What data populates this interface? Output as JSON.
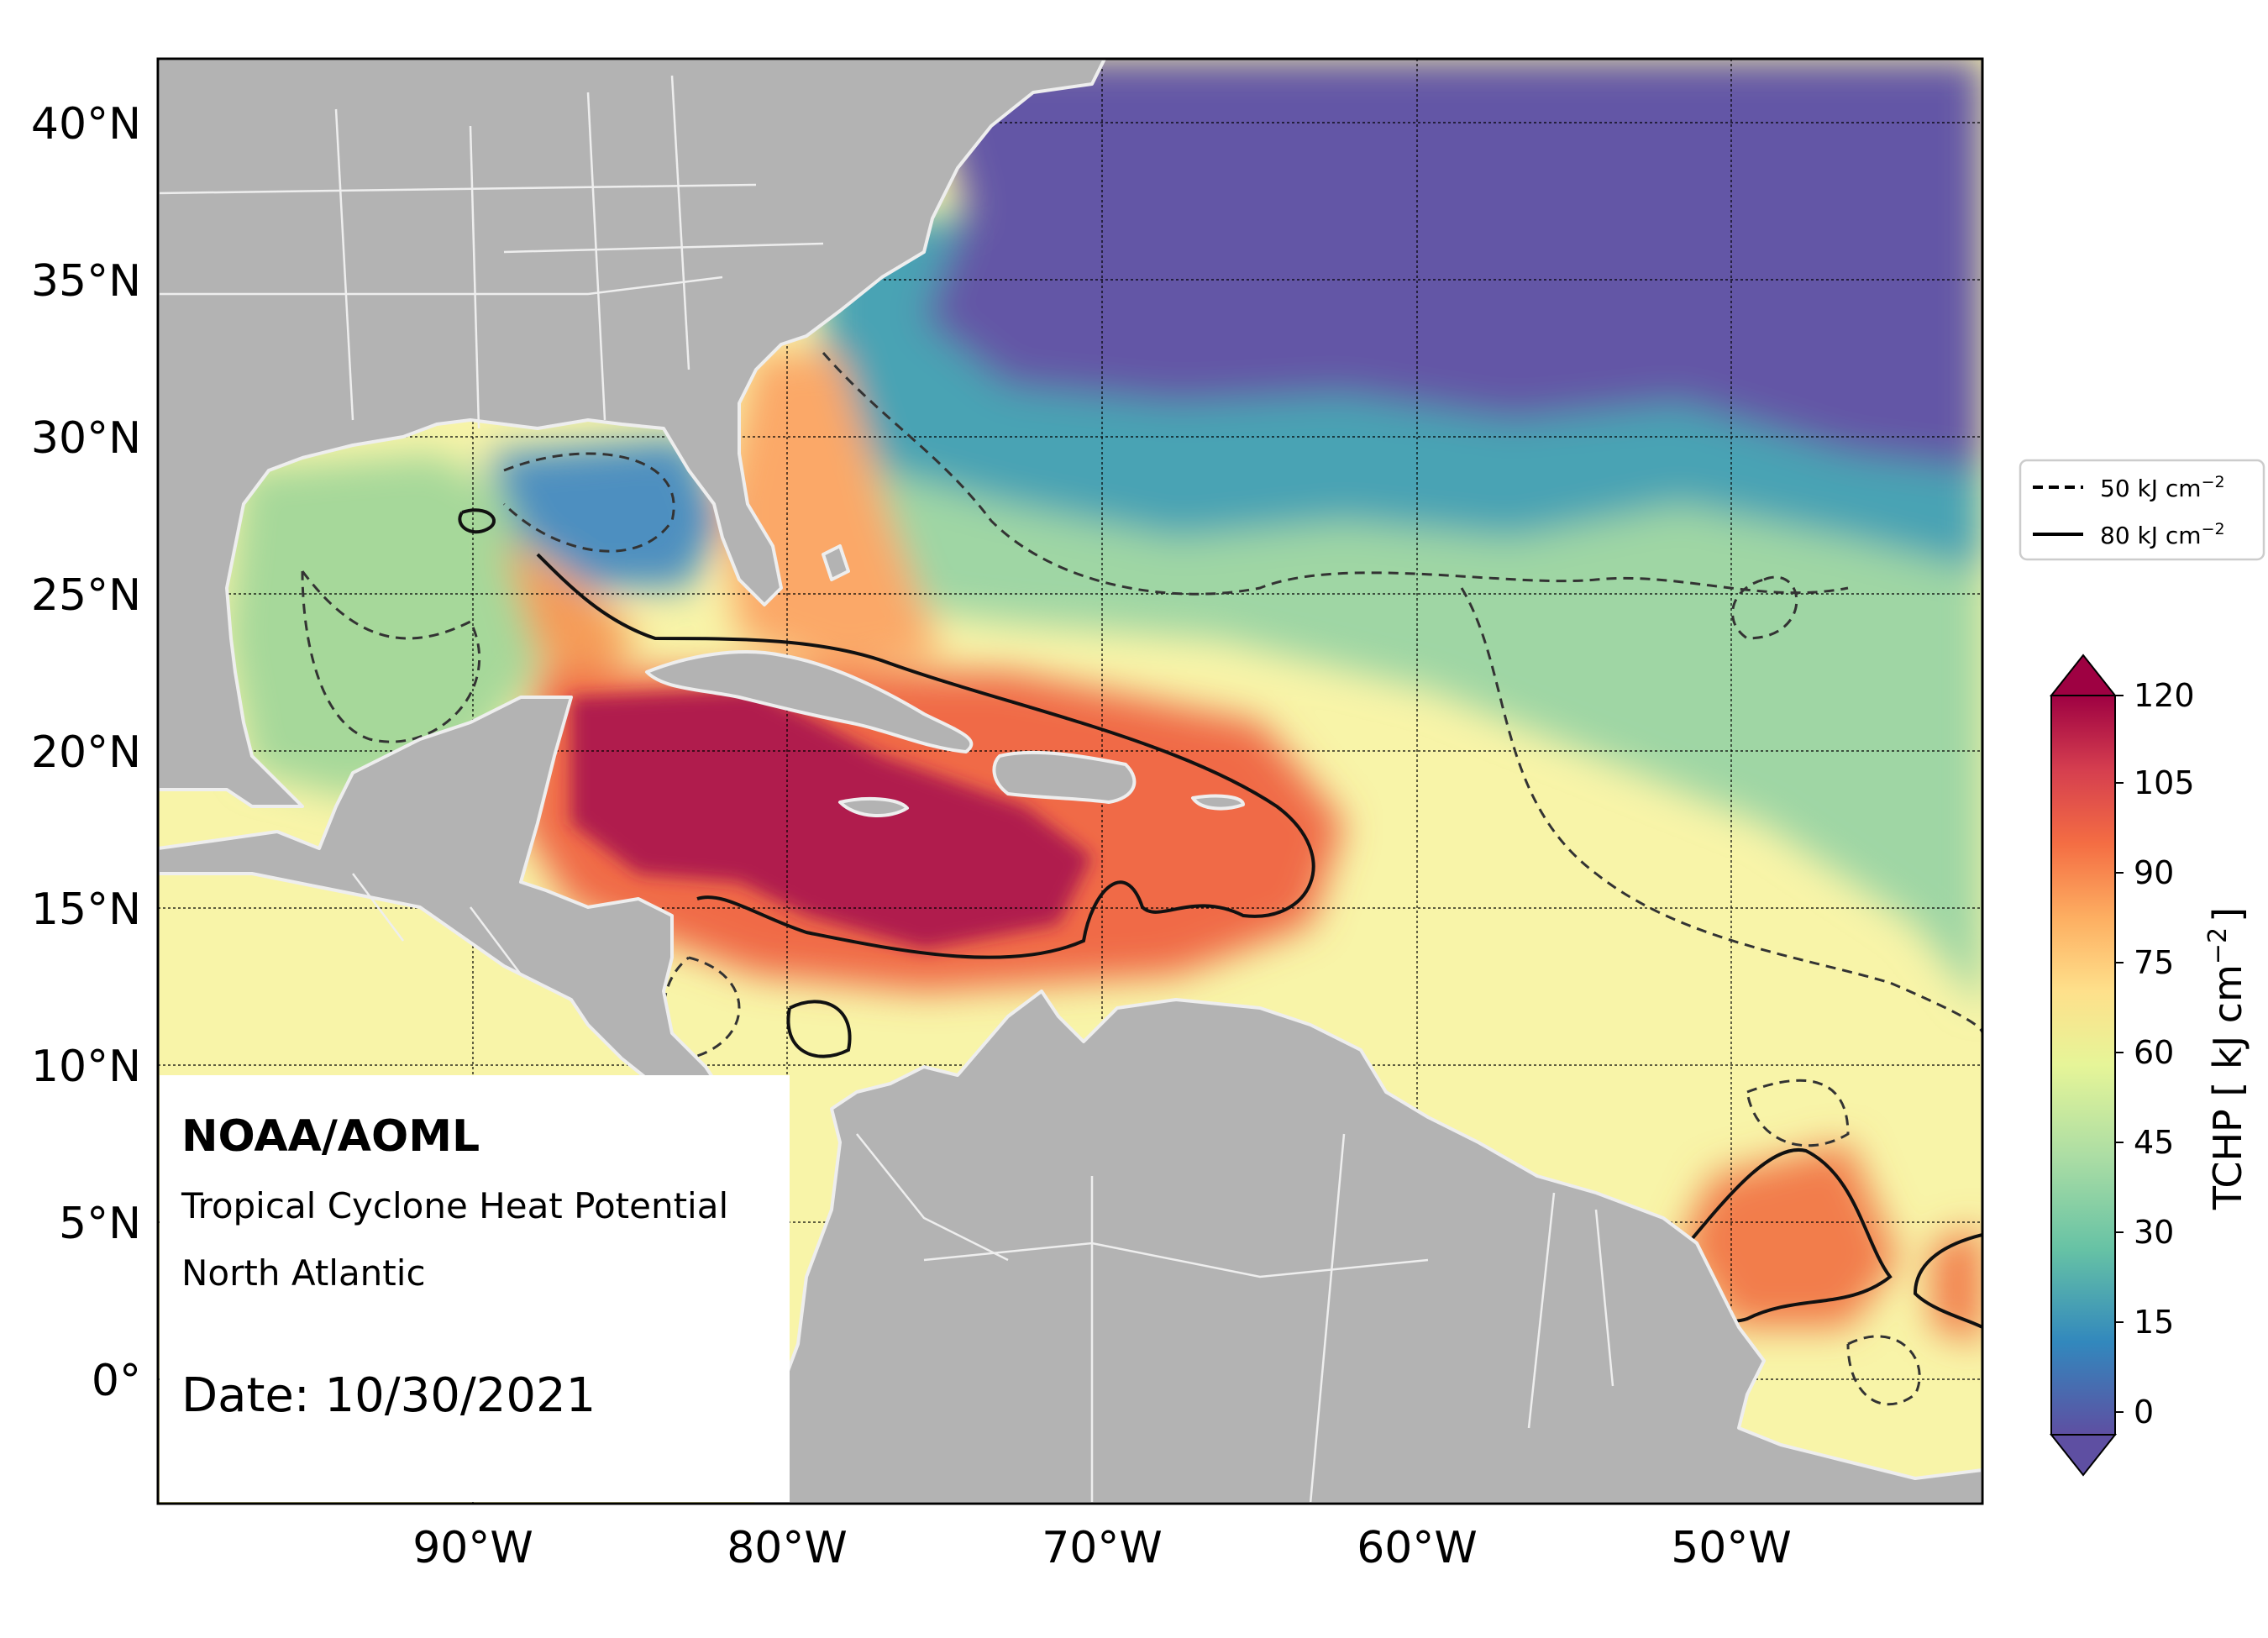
{
  "info_box": {
    "org": "NOAA/AOML",
    "product": "Tropical Cyclone Heat Potential",
    "region": "North Atlantic",
    "date": "Date: 10/30/2021"
  },
  "map": {
    "lon_range": [
      -100,
      -42
    ],
    "lat_range": [
      -4,
      42
    ],
    "lat_ticks": [
      {
        "value": 40,
        "label": "40°N"
      },
      {
        "value": 35,
        "label": "35°N"
      },
      {
        "value": 30,
        "label": "30°N"
      },
      {
        "value": 25,
        "label": "25°N"
      },
      {
        "value": 20,
        "label": "20°N"
      },
      {
        "value": 15,
        "label": "15°N"
      },
      {
        "value": 10,
        "label": "10°N"
      },
      {
        "value": 5,
        "label": "5°N"
      },
      {
        "value": 0,
        "label": "0°"
      }
    ],
    "lon_ticks": [
      {
        "value": -90,
        "label": "90°W"
      },
      {
        "value": -80,
        "label": "80°W"
      },
      {
        "value": -70,
        "label": "70°W"
      },
      {
        "value": -60,
        "label": "60°W"
      },
      {
        "value": -50,
        "label": "50°W"
      }
    ],
    "gridlines": true,
    "land_color": "#b3b3b3",
    "boundary_color": "#eeeeee"
  },
  "contour_legend": {
    "placement": "right",
    "items": [
      {
        "style": "dashed",
        "label": "50 kJ cm",
        "sup": "−2"
      },
      {
        "style": "solid",
        "label": "80 kJ cm",
        "sup": "−2"
      }
    ]
  },
  "colorbar": {
    "label": "TCHP [ kJ cm",
    "label_sup": "−2",
    "label_end": "]",
    "ticks": [
      "0",
      "15",
      "30",
      "45",
      "60",
      "75",
      "90",
      "105",
      "120"
    ],
    "colors": [
      "#5e4fa2",
      "#3f6db0",
      "#3288bd",
      "#4ea7b0",
      "#66c2a5",
      "#8ed0a4",
      "#abdda4",
      "#cdea9e",
      "#e6f598",
      "#f6fbb2",
      "#fee08b",
      "#fdc776",
      "#fdae61",
      "#f88e52",
      "#f46d43",
      "#e3504c",
      "#d53e4f",
      "#b3204a",
      "#9e0142"
    ]
  },
  "heat_regions": [
    {
      "name": "cold-northeast",
      "level": 0
    },
    {
      "name": "gulf-west",
      "level": 40
    },
    {
      "name": "gulf-loop-current",
      "level": 75
    },
    {
      "name": "gulf-east-shelf",
      "level": 20
    },
    {
      "name": "bahamas-gulf-stream",
      "level": 82
    },
    {
      "name": "caribbean-west",
      "level": 110
    },
    {
      "name": "caribbean-east",
      "level": 95
    },
    {
      "name": "tropical-atlantic",
      "level": 60
    },
    {
      "name": "subtropical-belt",
      "level": 30
    },
    {
      "name": "amazon-plume",
      "level": 88
    }
  ]
}
